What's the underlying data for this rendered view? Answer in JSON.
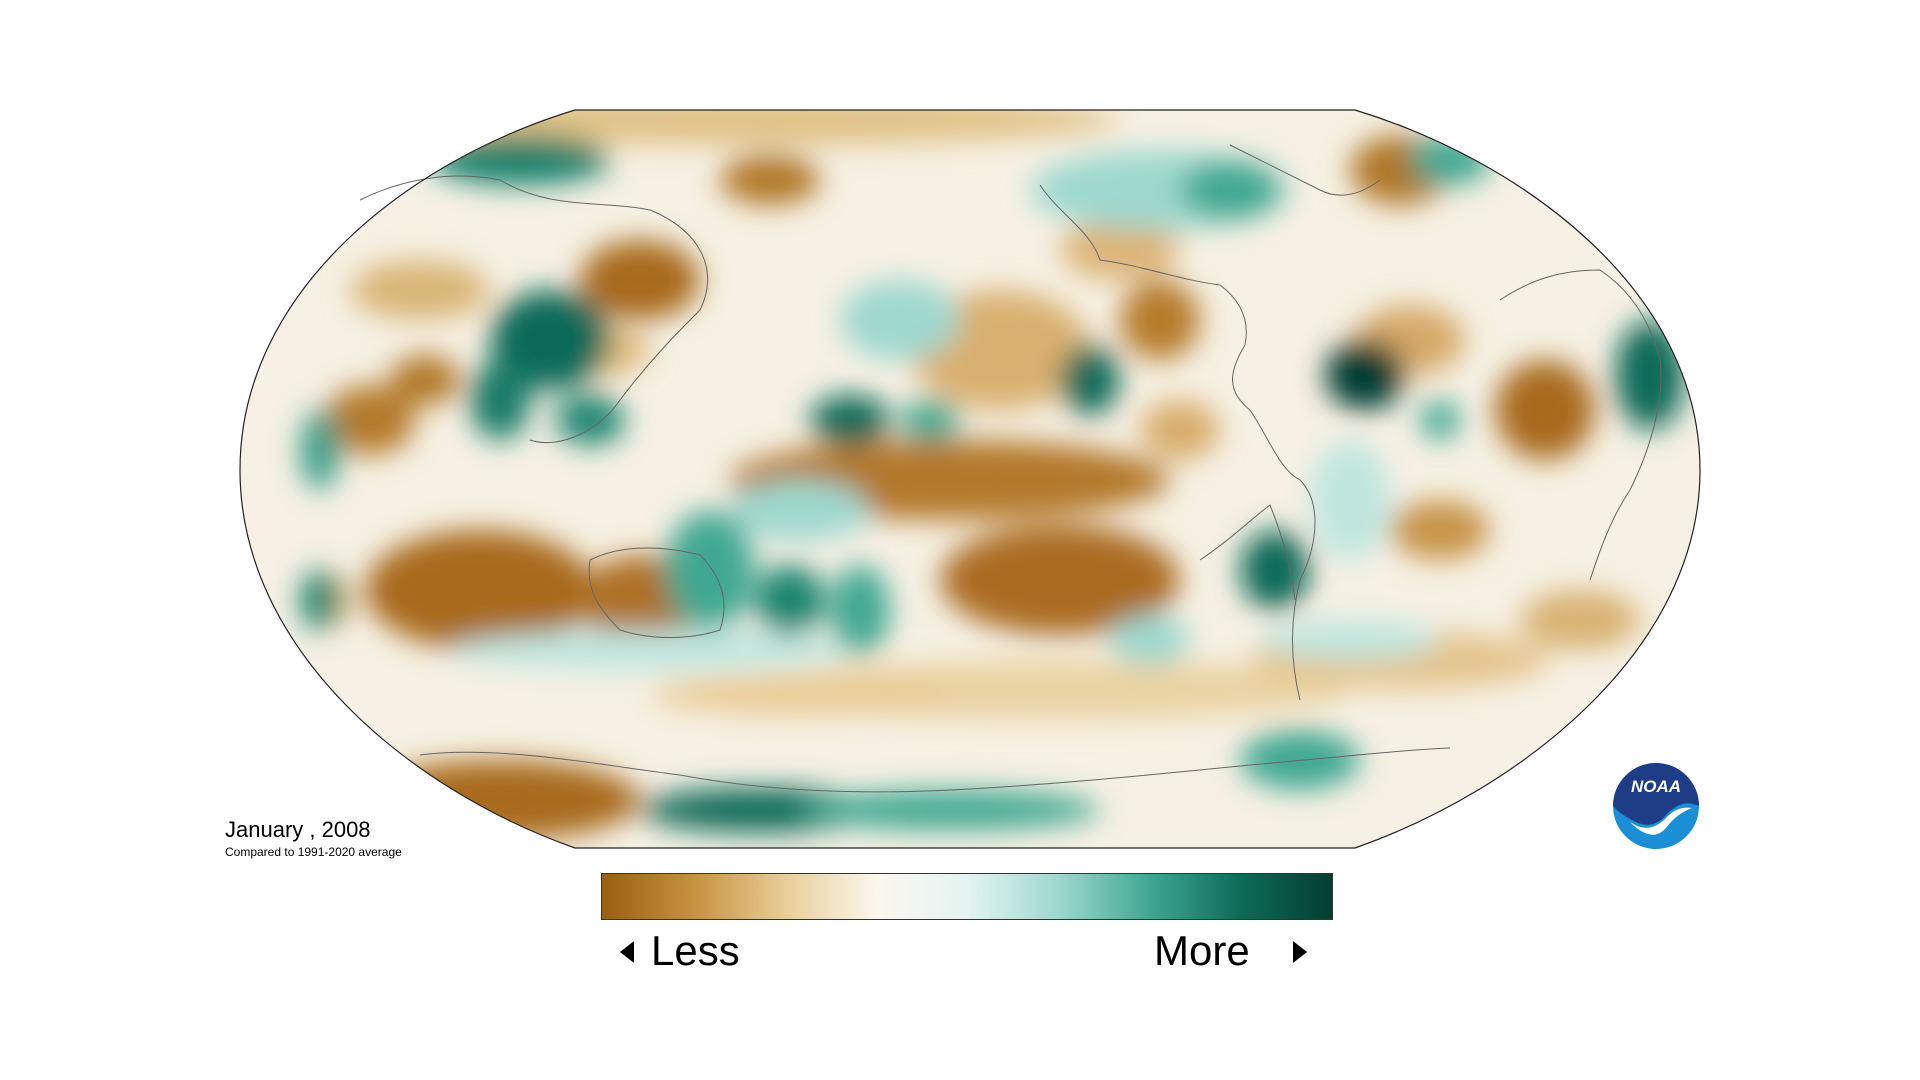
{
  "map": {
    "date_label": "January , 2008",
    "subtitle": "Compared to 1991-2020 average"
  },
  "legend": {
    "low_label": "Less",
    "high_label": "More",
    "gradient_colors": [
      "#9b5e12",
      "#c79140",
      "#e8cd97",
      "#fbf7ee",
      "#e4f4f2",
      "#9ed8cf",
      "#3fa892",
      "#0d6b58",
      "#053d30"
    ]
  },
  "logo": {
    "text": "NOAA"
  },
  "colors": {
    "drier": "#a9681c",
    "wetter": "#0c6e5d",
    "neutral": "#f7f4ea",
    "coast_lines": "#666666"
  }
}
